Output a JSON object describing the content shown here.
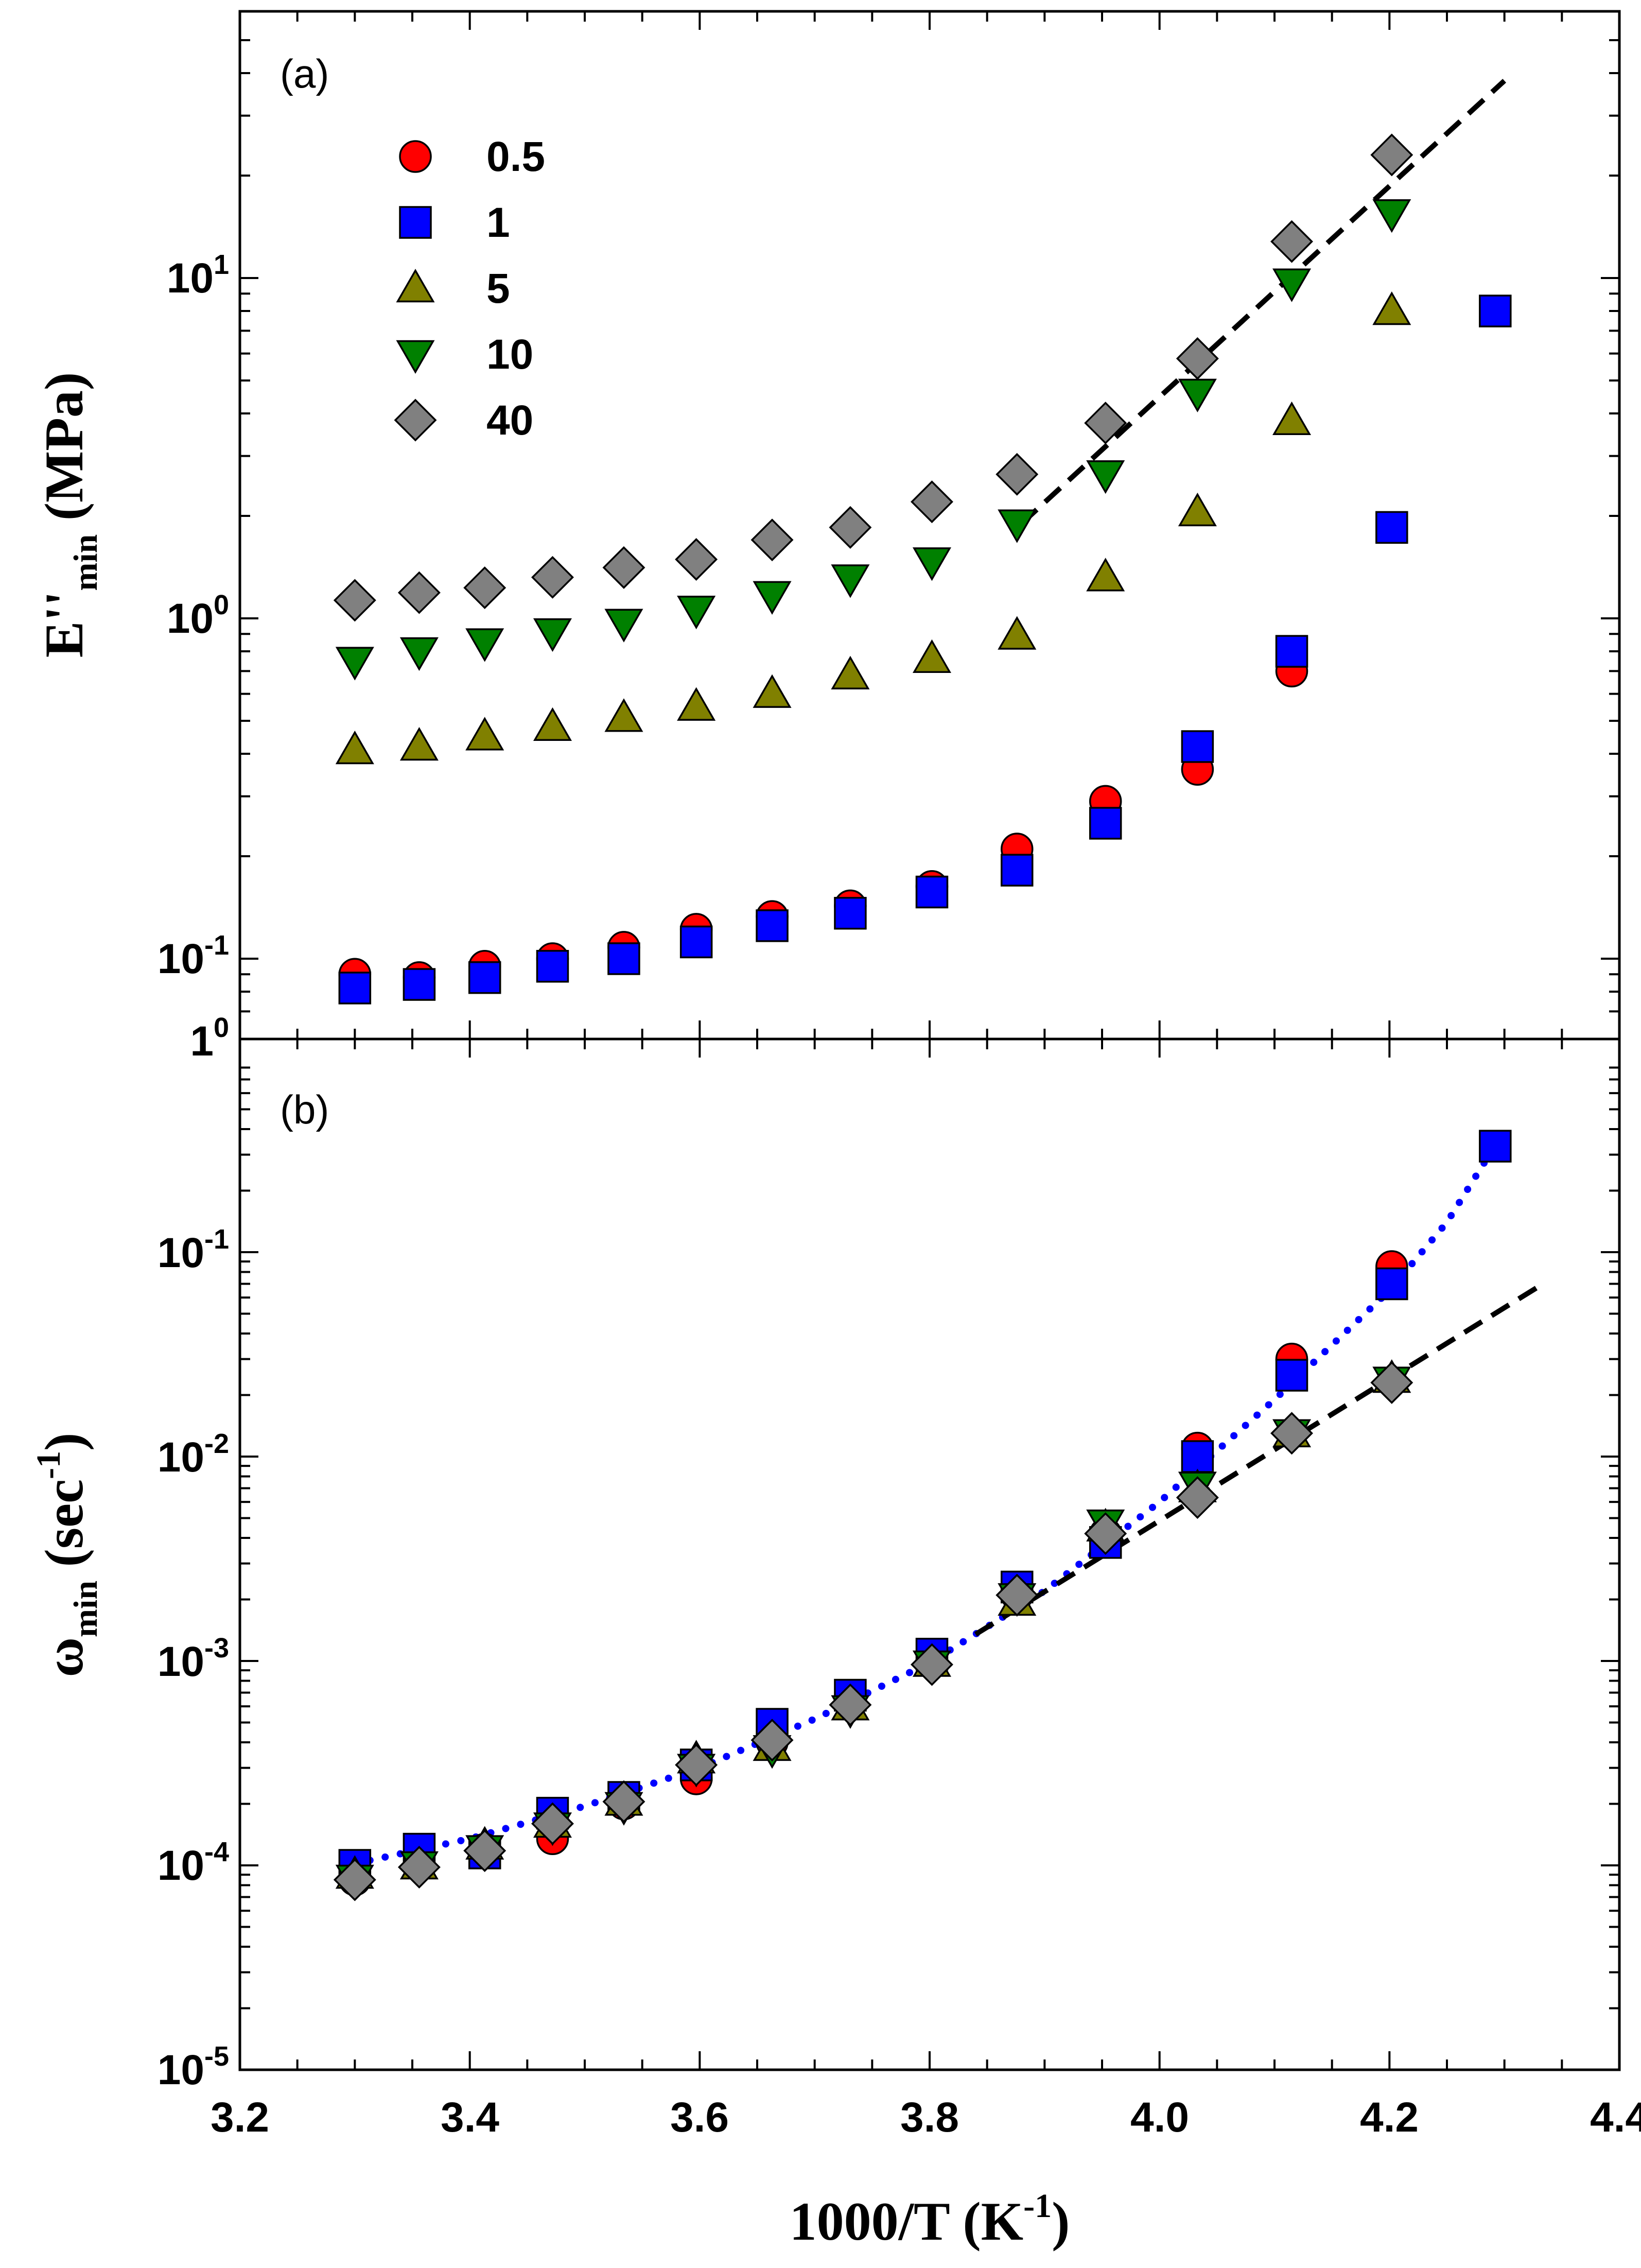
{
  "chart_data": [
    {
      "panel_label": "(a)",
      "type": "scatter",
      "ylabel": {
        "main": "E''",
        "sub": "min",
        "unit": " (MPa)"
      },
      "yscale": "log",
      "ylim": [
        0.07,
        50
      ],
      "xlim": [
        3.2,
        4.4
      ],
      "y_tick_labels": [
        {
          "value": 0.1,
          "base": "10",
          "exp": "-1"
        },
        {
          "value": 1,
          "base": "10",
          "exp": "0"
        },
        {
          "value": 10,
          "base": "10",
          "exp": "1"
        }
      ],
      "axis_corner_label": {
        "base": "1",
        "exp": "0"
      },
      "legend": {
        "placement": "upper-left",
        "entries": [
          "0.5",
          "1",
          "5",
          "10",
          "40"
        ]
      },
      "series": [
        {
          "name": "0.5",
          "marker": "circle",
          "color": "#ff0000",
          "x": [
            3.3,
            3.356,
            3.413,
            3.472,
            3.534,
            3.597,
            3.663,
            3.731,
            3.802,
            3.876,
            3.953,
            4.033,
            4.115
          ],
          "y": [
            0.09,
            0.088,
            0.095,
            0.1,
            0.108,
            0.122,
            0.133,
            0.143,
            0.163,
            0.21,
            0.29,
            0.36,
            0.7
          ]
        },
        {
          "name": "1",
          "marker": "square",
          "color": "#0000ff",
          "x": [
            3.3,
            3.356,
            3.413,
            3.472,
            3.534,
            3.597,
            3.663,
            3.731,
            3.802,
            3.876,
            3.953,
            4.033,
            4.115,
            4.202,
            4.292
          ],
          "y": [
            0.082,
            0.084,
            0.088,
            0.095,
            0.1,
            0.112,
            0.125,
            0.136,
            0.157,
            0.182,
            0.25,
            0.42,
            0.8,
            1.85,
            8.0
          ]
        },
        {
          "name": "5",
          "marker": "triangle-up",
          "color": "#808000",
          "x": [
            3.3,
            3.356,
            3.413,
            3.472,
            3.534,
            3.597,
            3.663,
            3.731,
            3.802,
            3.876,
            3.953,
            4.033,
            4.115,
            4.202
          ],
          "y": [
            0.41,
            0.42,
            0.45,
            0.48,
            0.51,
            0.55,
            0.6,
            0.68,
            0.76,
            0.89,
            1.32,
            2.05,
            3.8,
            8.0
          ]
        },
        {
          "name": "10",
          "marker": "triangle-down",
          "color": "#008000",
          "x": [
            3.3,
            3.356,
            3.413,
            3.472,
            3.534,
            3.597,
            3.663,
            3.731,
            3.802,
            3.876,
            3.953,
            4.033,
            4.115,
            4.202
          ],
          "y": [
            0.75,
            0.8,
            0.85,
            0.91,
            0.97,
            1.06,
            1.17,
            1.31,
            1.47,
            1.9,
            2.65,
            4.6,
            9.7,
            15.5
          ]
        },
        {
          "name": "40",
          "marker": "diamond",
          "color": "#808080",
          "x": [
            3.3,
            3.356,
            3.413,
            3.472,
            3.534,
            3.597,
            3.663,
            3.731,
            3.802,
            3.876,
            3.953,
            4.033,
            4.115,
            4.202
          ],
          "y": [
            1.13,
            1.19,
            1.23,
            1.32,
            1.41,
            1.49,
            1.7,
            1.85,
            2.2,
            2.65,
            3.75,
            5.8,
            12.8,
            23.0
          ]
        }
      ],
      "fit_lines": [
        {
          "style": "dashed",
          "color": "#000000",
          "x": [
            3.88,
            4.3
          ],
          "y": [
            1.9,
            38
          ]
        }
      ]
    },
    {
      "panel_label": "(b)",
      "type": "scatter",
      "ylabel": {
        "main": "ω",
        "sub": "min",
        "unit": " (sec",
        "unit_exp": "-1",
        "unit_close": ")"
      },
      "yscale": "log",
      "ylim": [
        1e-05,
        0.8
      ],
      "xlim": [
        3.2,
        4.4
      ],
      "xlabel": {
        "main": "1000/T (K",
        "exp": "-1",
        "close": ")"
      },
      "x_tick_labels": [
        "3.2",
        "3.4",
        "3.6",
        "3.8",
        "4.0",
        "4.2",
        "4.4"
      ],
      "y_tick_labels": [
        {
          "value": 1e-05,
          "base": "10",
          "exp": "-5"
        },
        {
          "value": 0.0001,
          "base": "10",
          "exp": "-4"
        },
        {
          "value": 0.001,
          "base": "10",
          "exp": "-3"
        },
        {
          "value": 0.01,
          "base": "10",
          "exp": "-2"
        },
        {
          "value": 0.1,
          "base": "10",
          "exp": "-1"
        }
      ],
      "series": [
        {
          "name": "0.5",
          "marker": "circle",
          "color": "#ff0000",
          "x": [
            3.3,
            3.356,
            3.413,
            3.472,
            3.534,
            3.597,
            3.663,
            3.731,
            3.802,
            3.876,
            3.953,
            4.033,
            4.115,
            4.202
          ],
          "y": [
            8.5e-05,
            0.0001,
            0.00012,
            0.000135,
            0.0002,
            0.000265,
            0.0004,
            0.00065,
            0.001,
            0.0021,
            0.0042,
            0.011,
            0.03,
            0.085
          ]
        },
        {
          "name": "1",
          "marker": "square",
          "color": "#0000ff",
          "x": [
            3.3,
            3.356,
            3.413,
            3.472,
            3.534,
            3.597,
            3.663,
            3.731,
            3.802,
            3.876,
            3.953,
            4.033,
            4.115,
            4.202,
            4.292
          ],
          "y": [
            0.0001,
            0.00012,
            0.000115,
            0.00018,
            0.000215,
            0.00031,
            0.00049,
            0.00068,
            0.00108,
            0.0023,
            0.0038,
            0.01,
            0.025,
            0.07,
            0.33
          ]
        },
        {
          "name": "5",
          "marker": "triangle-up",
          "color": "#808000",
          "x": [
            3.3,
            3.356,
            3.413,
            3.472,
            3.534,
            3.597,
            3.663,
            3.731,
            3.802,
            3.876,
            3.953,
            4.033,
            4.115,
            4.202
          ],
          "y": [
            9e-05,
            0.0001,
            0.000125,
            0.00016,
            0.000205,
            0.00033,
            0.00038,
            0.0006,
            0.00098,
            0.00195,
            0.0045,
            0.007,
            0.013,
            0.024
          ]
        },
        {
          "name": "10",
          "marker": "triangle-down",
          "color": "#008000",
          "x": [
            3.3,
            3.356,
            3.413,
            3.472,
            3.534,
            3.597,
            3.663,
            3.731,
            3.802,
            3.876,
            3.953,
            4.033,
            4.115,
            4.202
          ],
          "y": [
            8.6e-05,
            0.0001,
            0.00012,
            0.000155,
            0.000195,
            0.0003,
            0.00037,
            0.00058,
            0.00096,
            0.00205,
            0.0047,
            0.0072,
            0.013,
            0.0235
          ]
        },
        {
          "name": "40",
          "marker": "diamond",
          "color": "#808080",
          "x": [
            3.3,
            3.356,
            3.413,
            3.472,
            3.534,
            3.597,
            3.663,
            3.731,
            3.802,
            3.876,
            3.953,
            4.033,
            4.115,
            4.202
          ],
          "y": [
            8.5e-05,
            9.8e-05,
            0.000118,
            0.00016,
            0.000205,
            0.00031,
            0.00041,
            0.00061,
            0.00096,
            0.0021,
            0.0042,
            0.0063,
            0.013,
            0.023
          ]
        }
      ],
      "fit_lines": [
        {
          "style": "dotted",
          "color": "#0000ff",
          "x": [
            3.3,
            3.4,
            3.5,
            3.6,
            3.7,
            3.8,
            3.9,
            4.0,
            4.1,
            4.2,
            4.25,
            4.29
          ],
          "y": [
            0.000102,
            0.000135,
            0.000195,
            0.0003,
            0.00052,
            0.00098,
            0.0022,
            0.006,
            0.019,
            0.065,
            0.14,
            0.32
          ]
        },
        {
          "style": "dashed",
          "color": "#000000",
          "x": [
            3.84,
            4.33
          ],
          "y": [
            0.00135,
            0.068
          ]
        }
      ]
    }
  ]
}
